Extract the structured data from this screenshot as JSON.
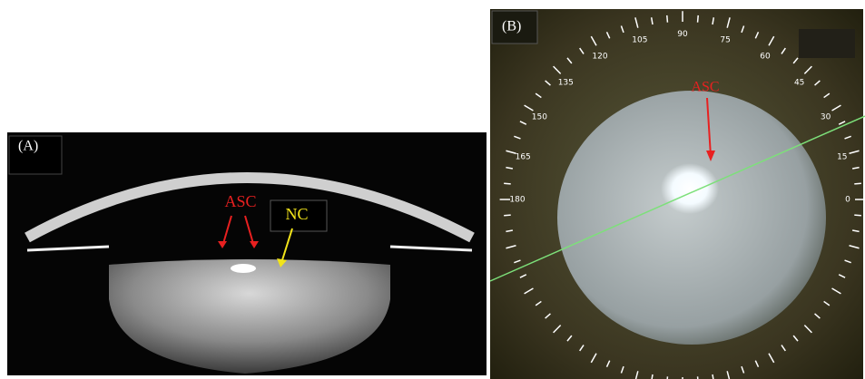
{
  "panels": [
    {
      "label": "(A)",
      "annotations": [
        "ASC",
        "NC"
      ]
    },
    {
      "label": "(B)",
      "annotation": "ASC",
      "scale_labels": [
        "0",
        "15",
        "30",
        "45",
        "60",
        "75",
        "90",
        "105",
        "120",
        "135",
        "150",
        "165",
        "180"
      ]
    }
  ]
}
